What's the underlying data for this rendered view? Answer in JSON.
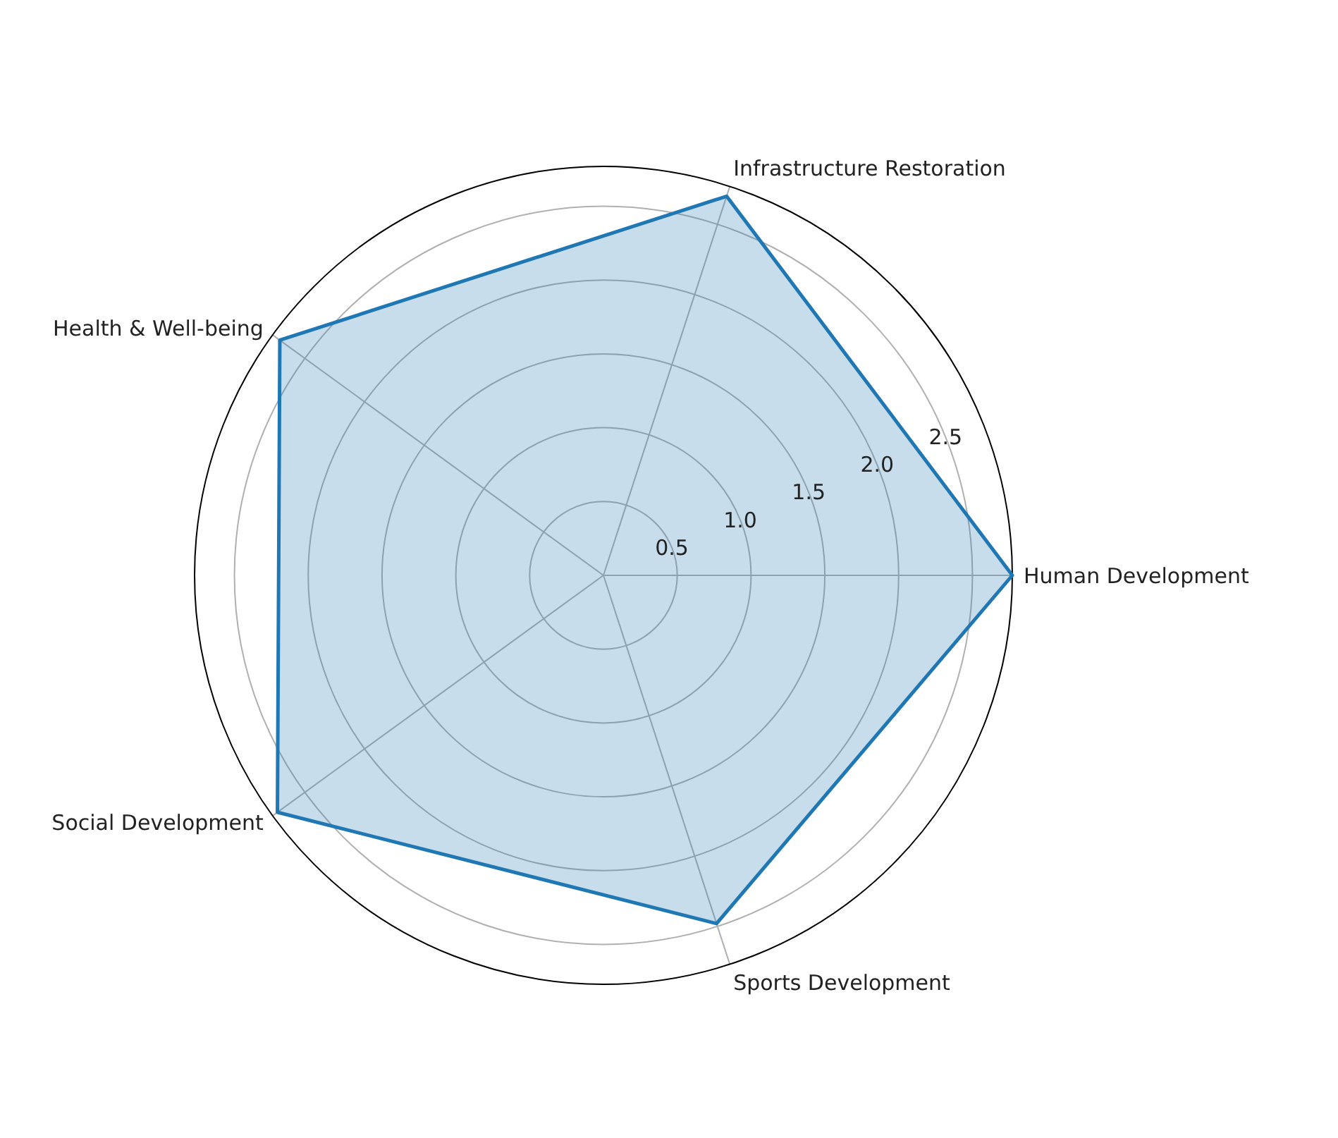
{
  "chart_data": {
    "type": "radar",
    "categories": [
      "Infrastructure Restoration",
      "Human Development",
      "Sports Development",
      "Social Development",
      "Health & Well-being"
    ],
    "series": [
      {
        "color": "#1f77b4",
        "values": [
          2.7,
          2.77,
          2.48,
          2.73,
          2.71
        ]
      }
    ],
    "ylim": [
      0,
      2.77
    ],
    "yticks": [
      0.5,
      {
        "value": 1,
        "label": "1.0"
      },
      1.5,
      {
        "value": 2,
        "label": "2.0"
      },
      2.5
    ],
    "grid": true
  }
}
